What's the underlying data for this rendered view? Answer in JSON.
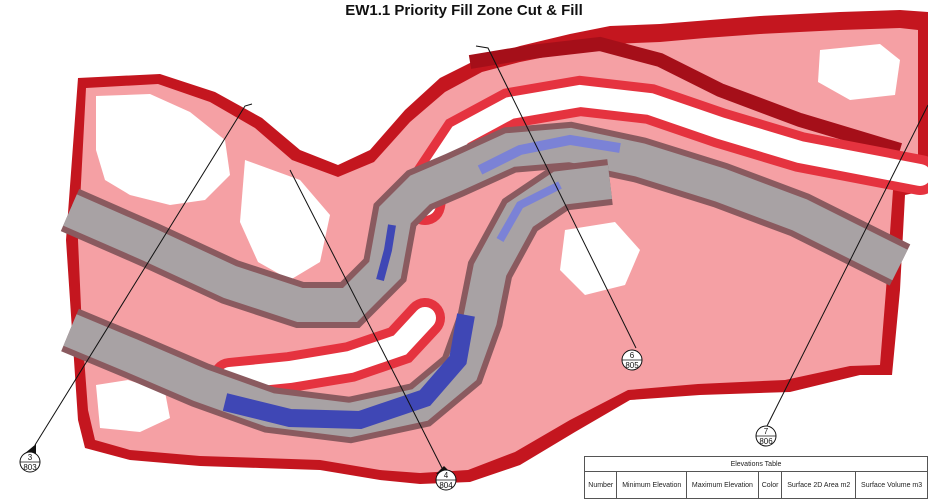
{
  "title": "EW1.1 Priority Fill Zone Cut & Fill",
  "section_markers": [
    {
      "top": "3",
      "bottom": "803"
    },
    {
      "top": "4",
      "bottom": "804"
    },
    {
      "top": "6",
      "bottom": "805"
    },
    {
      "top": "7",
      "bottom": "806"
    }
  ],
  "elevations_table": {
    "title": "Elevations Table",
    "headers": [
      "Number",
      "Minimum Elevation",
      "Maximum Elevation",
      "Color",
      "Surface 2D Area m2",
      "Surface Volume m3"
    ]
  },
  "colors": {
    "cut_dark": "#b8121f",
    "cut_mid": "#e5333f",
    "cut_light": "#f6a3a6",
    "fill_blue": "#5a63c9",
    "road_grey": "#a8a2a4"
  }
}
